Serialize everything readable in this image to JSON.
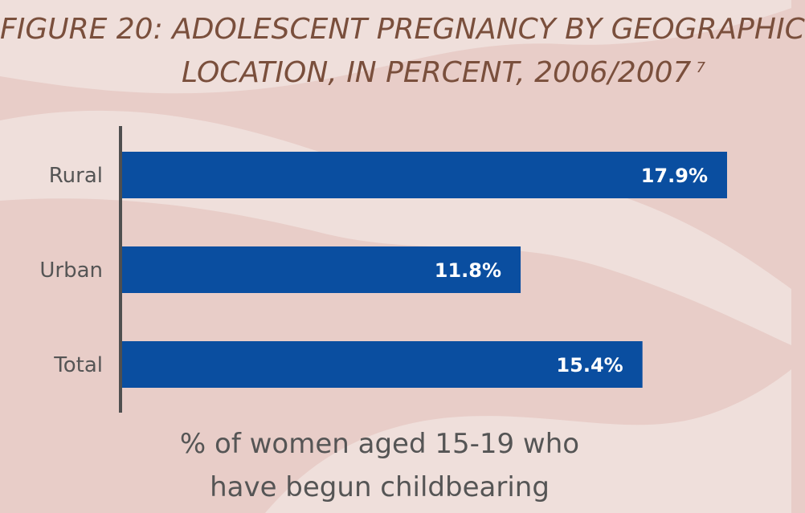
{
  "figure": {
    "title_line1": "FIGURE 20: ADOLESCENT PREGNANCY BY GEOGRAPHIC",
    "title_line2": "LOCATION, IN PERCENT, 2006/2007",
    "footnote_marker": "7"
  },
  "colors": {
    "bar": "#0a4ea0",
    "axis": "#4f4f4f",
    "background": "#e8cdc8",
    "wave_light": "#efdfdb",
    "title": "#7a4f3c",
    "label": "#555555",
    "value_label": "#ffffff"
  },
  "chart_data": {
    "type": "bar",
    "orientation": "horizontal",
    "categories": [
      "Rural",
      "Urban",
      "Total"
    ],
    "values": [
      17.9,
      11.8,
      15.4
    ],
    "value_labels": [
      "17.9%",
      "11.8%",
      "15.4%"
    ],
    "xlabel_line1": "% of women aged 15-19 who",
    "xlabel_line2": "have begun childbearing",
    "xlim": [
      0,
      17.9
    ],
    "grid": false,
    "legend": "none"
  }
}
